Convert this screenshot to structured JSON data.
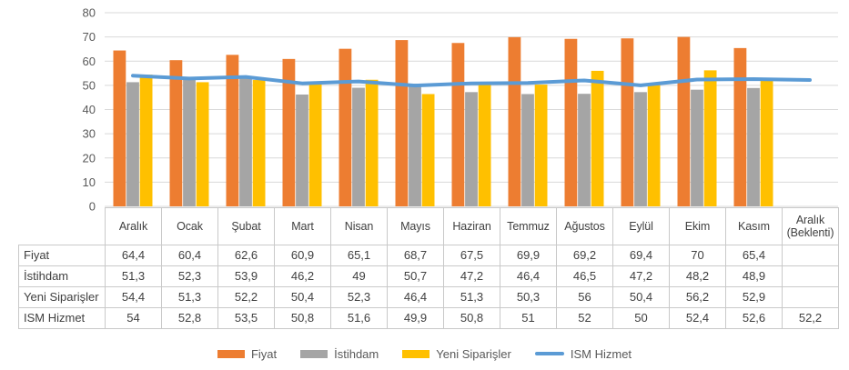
{
  "chart_data": {
    "type": "combo",
    "title": "",
    "categories": [
      "Aralık",
      "Ocak",
      "Şubat",
      "Mart",
      "Nisan",
      "Mayıs",
      "Haziran",
      "Temmuz",
      "Ağustos",
      "Eylül",
      "Ekim",
      "Kasım",
      "Aralık (Beklenti)"
    ],
    "series": [
      {
        "name": "Fiyat",
        "kind": "bar",
        "color": "#ED7D31",
        "values": [
          64.4,
          60.4,
          62.6,
          60.9,
          65.1,
          68.7,
          67.5,
          69.9,
          69.2,
          69.4,
          70,
          65.4,
          null
        ]
      },
      {
        "name": "İstihdam",
        "kind": "bar",
        "color": "#A5A5A5",
        "values": [
          51.3,
          52.3,
          53.9,
          46.2,
          49,
          50.7,
          47.2,
          46.4,
          46.5,
          47.2,
          48.2,
          48.9,
          null
        ]
      },
      {
        "name": "Yeni Siparişler",
        "kind": "bar",
        "color": "#FFC000",
        "values": [
          54.4,
          51.3,
          52.2,
          50.4,
          52.3,
          46.4,
          51.3,
          50.3,
          56,
          50.4,
          56.2,
          52.9,
          null
        ]
      },
      {
        "name": "ISM Hizmet",
        "kind": "line",
        "color": "#5B9BD5",
        "values": [
          54,
          52.8,
          53.5,
          50.8,
          51.6,
          49.9,
          50.8,
          51,
          52,
          50,
          52.4,
          52.6,
          52.2
        ]
      }
    ],
    "ylim": [
      0,
      80
    ],
    "ytick_step": 10,
    "grid": true,
    "legend_position": "bottom"
  },
  "table": {
    "corner_label": "",
    "columns": [
      "Aralık",
      "Ocak",
      "Şubat",
      "Mart",
      "Nisan",
      "Mayıs",
      "Haziran",
      "Temmuz",
      "Ağustos",
      "Eylül",
      "Ekim",
      "Kasım",
      "Aralık (Beklenti)"
    ],
    "rows": [
      {
        "label": "Fiyat",
        "cells": [
          "64,4",
          "60,4",
          "62,6",
          "60,9",
          "65,1",
          "68,7",
          "67,5",
          "69,9",
          "69,2",
          "69,4",
          "70",
          "65,4",
          ""
        ]
      },
      {
        "label": "İstihdam",
        "cells": [
          "51,3",
          "52,3",
          "53,9",
          "46,2",
          "49",
          "50,7",
          "47,2",
          "46,4",
          "46,5",
          "47,2",
          "48,2",
          "48,9",
          ""
        ]
      },
      {
        "label": "Yeni Siparişler",
        "cells": [
          "54,4",
          "51,3",
          "52,2",
          "50,4",
          "52,3",
          "46,4",
          "51,3",
          "50,3",
          "56",
          "50,4",
          "56,2",
          "52,9",
          ""
        ]
      },
      {
        "label": "ISM Hizmet",
        "cells": [
          "54",
          "52,8",
          "53,5",
          "50,8",
          "51,6",
          "49,9",
          "50,8",
          "51",
          "52",
          "50",
          "52,4",
          "52,6",
          "52,2"
        ]
      }
    ]
  },
  "legend": {
    "items": [
      {
        "label": "Fiyat",
        "color": "#ED7D31",
        "swatch": "rect"
      },
      {
        "label": "İstihdam",
        "color": "#A5A5A5",
        "swatch": "rect"
      },
      {
        "label": "Yeni Siparişler",
        "color": "#FFC000",
        "swatch": "rect"
      },
      {
        "label": "ISM Hizmet",
        "color": "#5B9BD5",
        "swatch": "line"
      }
    ]
  },
  "colors": {
    "background": "#FFFFFF",
    "gridline": "#D9D9D9",
    "axis_label": "#595959",
    "table_border": "#C9C9C9",
    "table_text": "#404040",
    "legend_text": "#595959"
  }
}
